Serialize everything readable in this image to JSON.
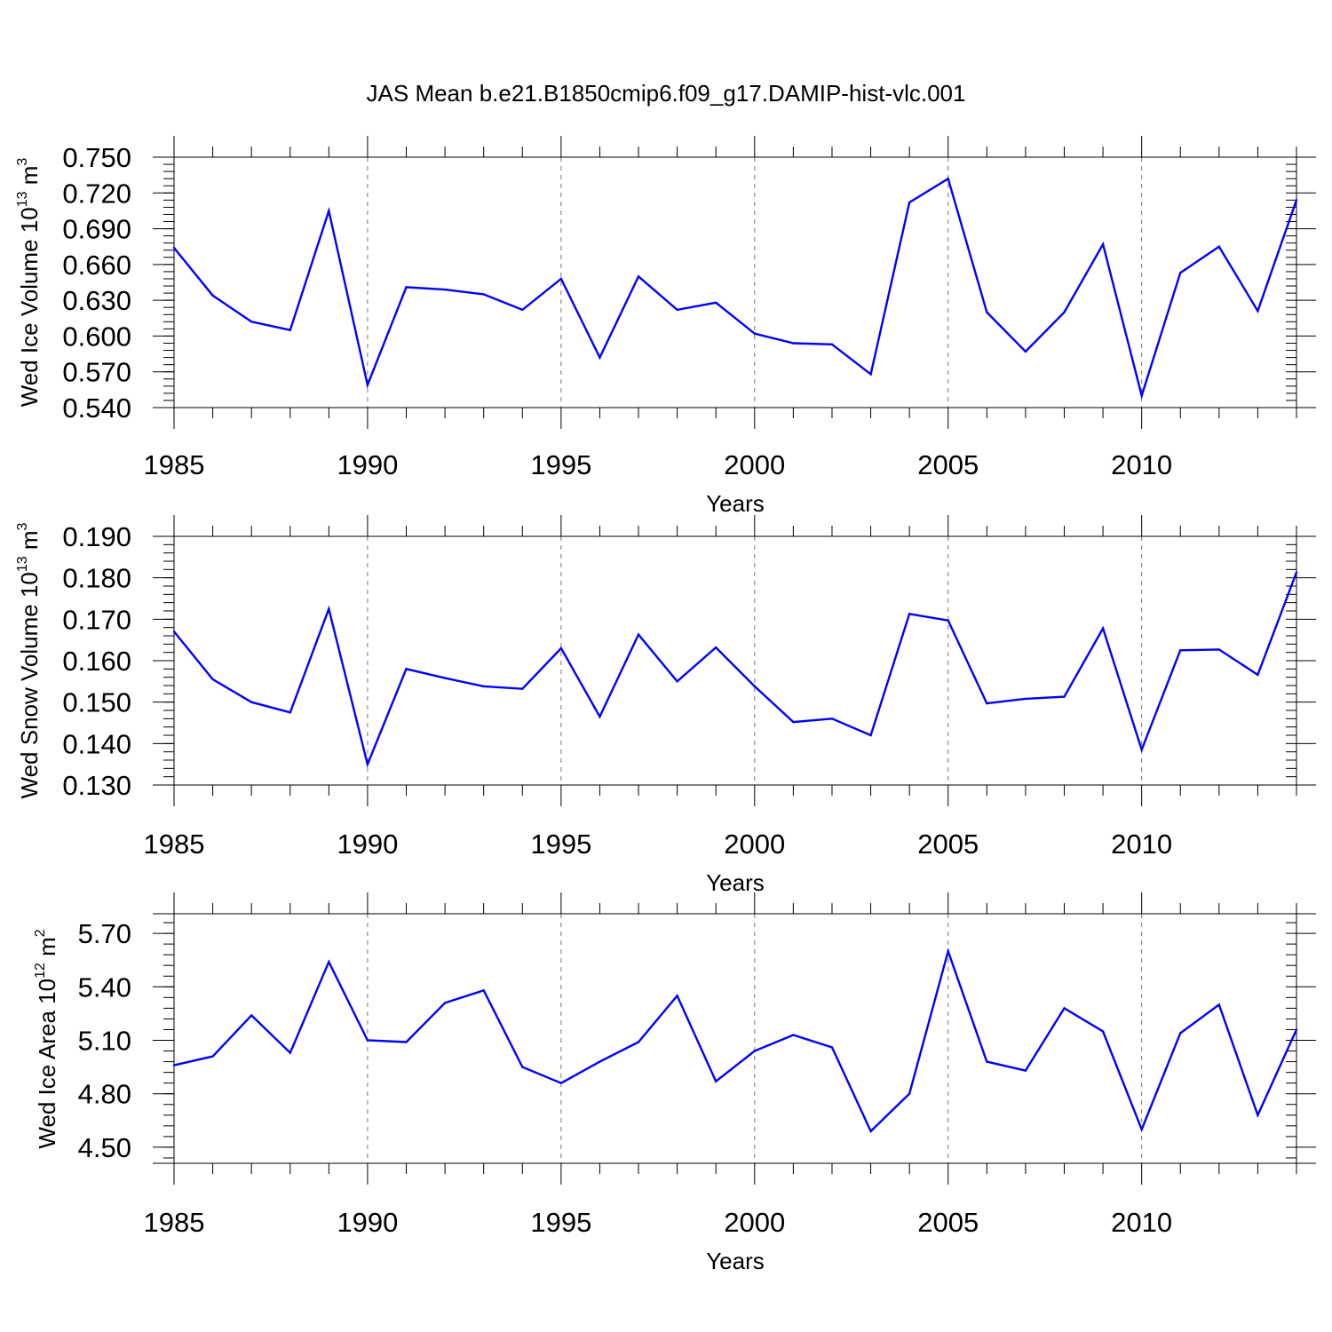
{
  "title": "JAS Mean b.e21.B1850cmip6.f09_g17.DAMIP-hist-vlc.001",
  "chart_data": [
    {
      "type": "line",
      "series": [
        {
          "name": "Wed Ice Volume",
          "color": "#0000ff"
        }
      ],
      "ylabel": {
        "main": "Wed Ice Volume 10",
        "exp": "13",
        "unit": " m",
        "unit_exp": "3"
      },
      "xlabel": "Years",
      "x": [
        1985,
        1986,
        1987,
        1988,
        1989,
        1990,
        1991,
        1992,
        1993,
        1994,
        1995,
        1996,
        1997,
        1998,
        1999,
        2000,
        2001,
        2002,
        2003,
        2004,
        2005,
        2006,
        2007,
        2008,
        2009,
        2010,
        2011,
        2012,
        2013,
        2014
      ],
      "values": [
        0.674,
        0.634,
        0.612,
        0.605,
        0.705,
        0.559,
        0.641,
        0.639,
        0.635,
        0.622,
        0.648,
        0.582,
        0.65,
        0.622,
        0.628,
        0.602,
        0.594,
        0.593,
        0.568,
        0.712,
        0.732,
        0.62,
        0.587,
        0.62,
        0.677,
        0.55,
        0.653,
        0.675,
        0.621,
        0.714
      ],
      "xlim": [
        1985,
        2014
      ],
      "ylim": [
        0.54,
        0.75
      ],
      "yticks": [
        "0.750",
        "0.720",
        "0.690",
        "0.660",
        "0.630",
        "0.600",
        "0.570",
        "0.540"
      ],
      "xticks": [
        "1985",
        "1990",
        "1995",
        "2000",
        "2005",
        "2010"
      ]
    },
    {
      "type": "line",
      "series": [
        {
          "name": "Wed Snow Volume",
          "color": "#0000ff"
        }
      ],
      "ylabel": {
        "main": "Wed Snow Volume 10",
        "exp": "13",
        "unit": " m",
        "unit_exp": "3"
      },
      "xlabel": "Years",
      "x": [
        1985,
        1986,
        1987,
        1988,
        1989,
        1990,
        1991,
        1992,
        1993,
        1994,
        1995,
        1996,
        1997,
        1998,
        1999,
        2000,
        2001,
        2002,
        2003,
        2004,
        2005,
        2006,
        2007,
        2008,
        2009,
        2010,
        2011,
        2012,
        2013,
        2014
      ],
      "values": [
        0.167,
        0.1555,
        0.15,
        0.1475,
        0.1725,
        0.135,
        0.158,
        0.1558,
        0.1538,
        0.1532,
        0.163,
        0.1465,
        0.1663,
        0.155,
        0.1632,
        0.1538,
        0.1452,
        0.146,
        0.142,
        0.1713,
        0.1697,
        0.1497,
        0.1508,
        0.1513,
        0.1678,
        0.1385,
        0.1625,
        0.1627,
        0.1566,
        0.1813
      ],
      "xlim": [
        1985,
        2014
      ],
      "ylim": [
        0.13,
        0.19
      ],
      "yticks": [
        "0.190",
        "0.180",
        "0.170",
        "0.160",
        "0.150",
        "0.140",
        "0.130"
      ],
      "xticks": [
        "1985",
        "1990",
        "1995",
        "2000",
        "2005",
        "2010"
      ]
    },
    {
      "type": "line",
      "series": [
        {
          "name": "Wed Ice Area",
          "color": "#0000ff"
        }
      ],
      "ylabel": {
        "main": "Wed Ice Area 10",
        "exp": "12",
        "unit": " m",
        "unit_exp": "2"
      },
      "xlabel": "Years",
      "x": [
        1985,
        1986,
        1987,
        1988,
        1989,
        1990,
        1991,
        1992,
        1993,
        1994,
        1995,
        1996,
        1997,
        1998,
        1999,
        2000,
        2001,
        2002,
        2003,
        2004,
        2005,
        2006,
        2007,
        2008,
        2009,
        2010,
        2011,
        2012,
        2013,
        2014
      ],
      "values": [
        4.96,
        5.01,
        5.24,
        5.03,
        5.54,
        5.1,
        5.09,
        5.31,
        5.38,
        4.95,
        4.86,
        4.98,
        5.09,
        5.35,
        4.87,
        5.04,
        5.13,
        5.06,
        4.59,
        4.8,
        5.6,
        4.98,
        4.93,
        5.28,
        5.15,
        4.6,
        5.14,
        5.3,
        4.68,
        5.16
      ],
      "xlim": [
        1985,
        2014
      ],
      "ylim": [
        4.41,
        5.81
      ],
      "yticks": [
        "5.70",
        "5.40",
        "5.10",
        "4.80",
        "4.50"
      ],
      "xticks": [
        "1985",
        "1990",
        "1995",
        "2000",
        "2005",
        "2010"
      ]
    }
  ]
}
